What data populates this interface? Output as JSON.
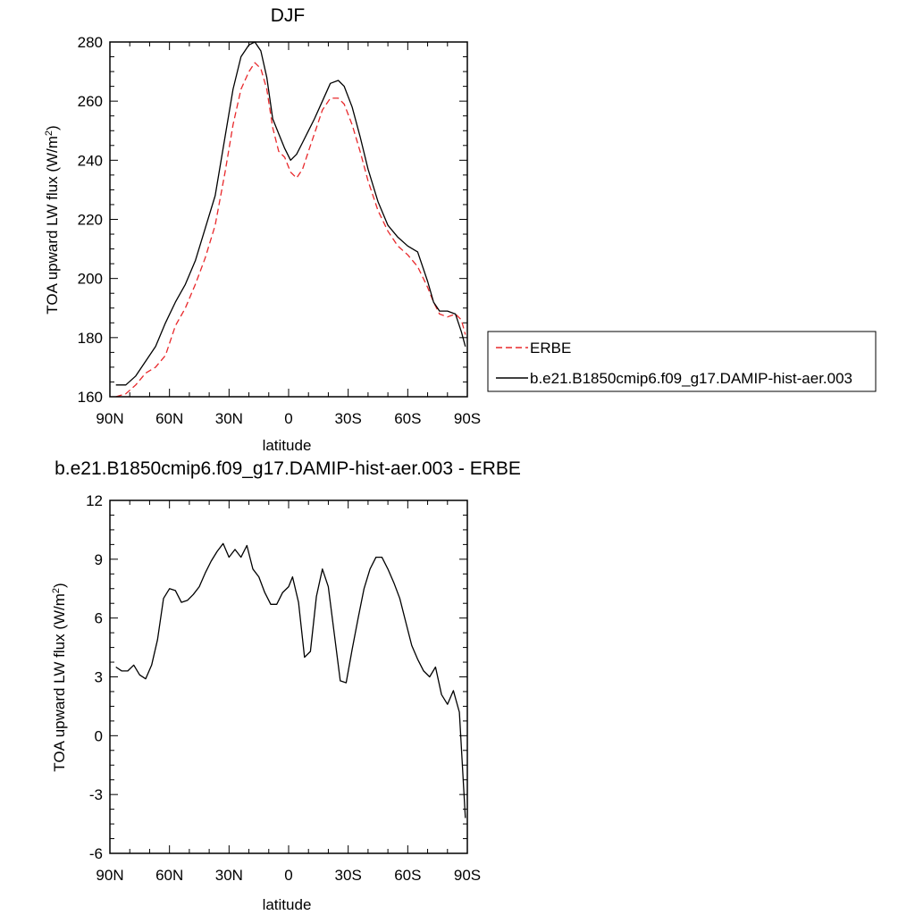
{
  "chart_data": [
    {
      "type": "line",
      "title": "DJF",
      "xlabel": "latitude",
      "ylabel_main": "TOA upward LW flux (W/m",
      "ylabel_sup": "2",
      "ylabel_close": ")",
      "xlim": [
        90,
        -90
      ],
      "ylim": [
        160,
        280
      ],
      "yticks": [
        160,
        180,
        200,
        220,
        240,
        260,
        280
      ],
      "xticks": [
        {
          "v": 90,
          "label": "90N"
        },
        {
          "v": 60,
          "label": "60N"
        },
        {
          "v": 30,
          "label": "30N"
        },
        {
          "v": 0,
          "label": "0"
        },
        {
          "v": -30,
          "label": "30S"
        },
        {
          "v": -60,
          "label": "60S"
        },
        {
          "v": -90,
          "label": "90S"
        }
      ],
      "legend_position": "right",
      "series": [
        {
          "name": "ERBE",
          "color": "#e8282b",
          "dash": "dashed",
          "x": [
            87,
            82,
            77,
            72,
            67,
            62,
            57,
            52,
            47,
            42,
            37,
            32,
            28,
            24,
            20,
            17,
            14,
            11,
            8,
            5,
            2,
            -1,
            -4,
            -7,
            -10,
            -13,
            -17,
            -21,
            -25,
            -28,
            -32,
            -36,
            -40,
            -45,
            -50,
            -55,
            -60,
            -65,
            -70,
            -73,
            -76,
            -80,
            -84,
            -87,
            -89
          ],
          "y": [
            160,
            161,
            164,
            168,
            170,
            174,
            184,
            190,
            198,
            207,
            218,
            236,
            252,
            264,
            270,
            273,
            271,
            264,
            251,
            243,
            241,
            236,
            234,
            237,
            243,
            249,
            257,
            261,
            261,
            259,
            252,
            243,
            233,
            223,
            216,
            211,
            208,
            204,
            197,
            192,
            188,
            187,
            188,
            186,
            181
          ]
        },
        {
          "name": "b.e21.B1850cmip6.f09_g17.DAMIP-hist-aer.003",
          "color": "#000000",
          "dash": "solid",
          "x": [
            87,
            82,
            77,
            72,
            67,
            62,
            57,
            52,
            47,
            42,
            37,
            32,
            28,
            24,
            20,
            17,
            14,
            11,
            8,
            5,
            2,
            -1,
            -4,
            -7,
            -10,
            -13,
            -17,
            -21,
            -25,
            -28,
            -32,
            -36,
            -40,
            -45,
            -50,
            -55,
            -60,
            -65,
            -70,
            -73,
            -76,
            -80,
            -84,
            -87,
            -89
          ],
          "y": [
            164,
            164,
            167,
            172,
            177,
            185,
            192,
            198,
            206,
            217,
            228,
            248,
            264,
            275,
            279,
            280,
            277,
            268,
            254,
            249,
            244,
            240,
            242,
            246,
            250,
            254,
            260,
            266,
            267,
            265,
            258,
            248,
            237,
            226,
            218,
            214,
            211,
            209,
            199,
            192,
            189,
            189,
            188,
            182,
            177
          ]
        }
      ]
    },
    {
      "type": "line",
      "title": "b.e21.B1850cmip6.f09_g17.DAMIP-hist-aer.003 - ERBE",
      "xlabel": "latitude",
      "ylabel_main": "TOA upward LW flux (W/m",
      "ylabel_sup": "2",
      "ylabel_close": ")",
      "xlim": [
        90,
        -90
      ],
      "ylim": [
        -6,
        12
      ],
      "yticks": [
        -6,
        -3,
        0,
        3,
        6,
        9,
        12
      ],
      "xticks": [
        {
          "v": 90,
          "label": "90N"
        },
        {
          "v": 60,
          "label": "60N"
        },
        {
          "v": 30,
          "label": "30N"
        },
        {
          "v": 0,
          "label": "0"
        },
        {
          "v": -30,
          "label": "30S"
        },
        {
          "v": -60,
          "label": "60S"
        },
        {
          "v": -90,
          "label": "90S"
        }
      ],
      "series": [
        {
          "name": "",
          "color": "#000000",
          "dash": "solid",
          "x": [
            87,
            84,
            81,
            78,
            75,
            72,
            69,
            66,
            63,
            60,
            57,
            54,
            51,
            48,
            45,
            42,
            39,
            36,
            33,
            30,
            27,
            24,
            21,
            18,
            15,
            12,
            9,
            6,
            3,
            0,
            -2,
            -5,
            -8,
            -11,
            -14,
            -17,
            -20,
            -23,
            -26,
            -29,
            -32,
            -35,
            -38,
            -41,
            -44,
            -47,
            -50,
            -53,
            -56,
            -59,
            -62,
            -65,
            -68,
            -71,
            -74,
            -77,
            -80,
            -83,
            -86,
            -89
          ],
          "y": [
            3.5,
            3.3,
            3.3,
            3.6,
            3.1,
            2.9,
            3.6,
            4.9,
            7.0,
            7.5,
            7.4,
            6.8,
            6.9,
            7.2,
            7.6,
            8.3,
            8.9,
            9.4,
            9.8,
            9.1,
            9.5,
            9.1,
            9.7,
            8.5,
            8.1,
            7.3,
            6.7,
            6.7,
            7.3,
            7.6,
            8.1,
            6.8,
            4.0,
            4.3,
            7.1,
            8.5,
            7.6,
            5.2,
            2.8,
            2.7,
            4.4,
            6.0,
            7.5,
            8.5,
            9.1,
            9.1,
            8.5,
            7.8,
            7.0,
            5.8,
            4.6,
            3.9,
            3.3,
            3.0,
            3.5,
            2.1,
            1.6,
            2.3,
            1.2,
            -4.2
          ]
        }
      ]
    }
  ]
}
